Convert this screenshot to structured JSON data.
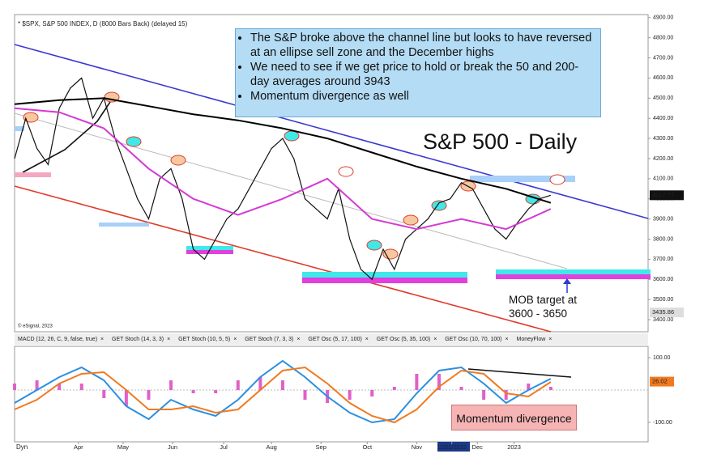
{
  "header": "* $SPX, S&P 500 INDEX, D (8000 Bars Back) (delayed 15)",
  "copyright": "© eSignal, 2023",
  "notes": [
    "The S&P broke above the channel line but looks to have reversed at an ellipse sell zone and the December highs",
    "We need to see if we get price to hold or break the 50 and 200-day averages around 3943",
    "Momentum divergence as well"
  ],
  "chart_title": "S&P 500 - Daily",
  "target_note": [
    "MOB target at",
    "3600 - 3650"
  ],
  "divergence_note": "Momentum divergence",
  "tabs": [
    "MACD (12, 26, C, 9, false, true)",
    "GET Stoch (14, 3, 3)",
    "GET Stoch (10, 5, 5)",
    "GET Stoch (7, 3, 3)",
    "GET Osc (5, 17, 100)",
    "GET Osc (5, 35, 100)",
    "GET Osc (10, 70, 100)",
    "MoneyFlow"
  ],
  "corner": "Dyn",
  "chart_data": [
    {
      "type": "line",
      "xlim": [
        0,
        397
      ],
      "xticks": [
        {
          "value": 40,
          "label": "Apr"
        },
        {
          "value": 68,
          "label": "May"
        },
        {
          "value": 99,
          "label": "Jun"
        },
        {
          "value": 131,
          "label": "Jul"
        },
        {
          "value": 161,
          "label": "Aug"
        },
        {
          "value": 192,
          "label": "Sep"
        },
        {
          "value": 221,
          "label": "Oct"
        },
        {
          "value": 252,
          "label": "Nov"
        },
        {
          "value": 274,
          "label": "11/21/2022"
        },
        {
          "value": 290,
          "label": "Dec"
        },
        {
          "value": 313,
          "label": "2023"
        }
      ],
      "ylim": [
        3340,
        4915
      ],
      "yticks": [
        {
          "value": 3400,
          "label": "3400.00"
        },
        {
          "value": 3500,
          "label": "3500.00"
        },
        {
          "value": 3600,
          "label": "3600.00"
        },
        {
          "value": 3700,
          "label": "3700.00"
        },
        {
          "value": 3800,
          "label": "3800.00"
        },
        {
          "value": 3900,
          "label": "3900.00"
        },
        {
          "value": 4000,
          "label": "4000.00"
        },
        {
          "value": 4100,
          "label": "4100.00"
        },
        {
          "value": 4200,
          "label": "4200.00"
        },
        {
          "value": 4300,
          "label": "4300.00"
        },
        {
          "value": 4400,
          "label": "4400.00"
        },
        {
          "value": 4500,
          "label": "4500.00"
        },
        {
          "value": 4600,
          "label": "4600.00"
        },
        {
          "value": 4700,
          "label": "4700.00"
        },
        {
          "value": 4800,
          "label": "4800.00"
        },
        {
          "value": 4900,
          "label": "4900.00"
        }
      ],
      "last_labels": [
        {
          "value": 4017.77,
          "color": "#111111"
        },
        {
          "value": 3435.86,
          "color": "#dddddd"
        }
      ],
      "series": [
        {
          "color": "#111111",
          "width": 1.2,
          "x": [
            0,
            7,
            14,
            21,
            28,
            35,
            42,
            49,
            56,
            63,
            70,
            77,
            84,
            91,
            98,
            105,
            112,
            119,
            126,
            133,
            140,
            147,
            154,
            161,
            168,
            175,
            182,
            189,
            196,
            203,
            210,
            217,
            224,
            231,
            238,
            245,
            252,
            259,
            266,
            273,
            280,
            287,
            294,
            301,
            308,
            315,
            322,
            329,
            336
          ],
          "values": [
            4200,
            4400,
            4250,
            4170,
            4450,
            4550,
            4600,
            4400,
            4500,
            4300,
            4150,
            4000,
            3900,
            4100,
            4150,
            4000,
            3750,
            3700,
            3800,
            3900,
            3950,
            4050,
            4150,
            4250,
            4300,
            4200,
            4000,
            3950,
            3900,
            4050,
            3800,
            3650,
            3600,
            3750,
            3650,
            3800,
            3850,
            3900,
            3980,
            4000,
            4080,
            4050,
            3950,
            3850,
            3800,
            3880,
            3950,
            4000,
            4018
          ]
        },
        {
          "color": "#000000",
          "width": 2,
          "x": [
            0,
            28,
            56,
            84,
            112,
            140,
            168,
            196,
            224,
            252,
            280,
            308,
            336
          ],
          "values": [
            4470,
            4490,
            4500,
            4460,
            4420,
            4390,
            4350,
            4300,
            4230,
            4160,
            4100,
            4050,
            3980
          ]
        },
        {
          "color": "#d43ad4",
          "width": 2,
          "x": [
            0,
            28,
            56,
            84,
            112,
            140,
            168,
            196,
            224,
            252,
            280,
            308,
            336
          ],
          "values": [
            4450,
            4430,
            4350,
            4150,
            4000,
            3920,
            4000,
            4100,
            3900,
            3850,
            3900,
            3850,
            3950
          ]
        }
      ]
    },
    {
      "type": "macd",
      "xlim": [
        0,
        397
      ],
      "ylim": [
        -160,
        135
      ],
      "yticks": [
        {
          "value": 100,
          "label": "100.00"
        },
        {
          "value": -100,
          "label": "-100.00"
        }
      ],
      "last_label": 26.02,
      "x": [
        0,
        14,
        28,
        42,
        56,
        70,
        84,
        98,
        112,
        126,
        140,
        154,
        168,
        182,
        196,
        210,
        224,
        238,
        252,
        266,
        280,
        294,
        308,
        322,
        336
      ],
      "histogram": {
        "color": "#e060c8",
        "values": [
          20,
          30,
          20,
          20,
          -25,
          -50,
          -30,
          30,
          -10,
          -10,
          30,
          40,
          30,
          -30,
          -40,
          -30,
          -20,
          10,
          50,
          50,
          10,
          -30,
          -30,
          20,
          10
        ]
      },
      "series": [
        {
          "color": "#2a8fe0",
          "values": [
            -40,
            0,
            40,
            70,
            30,
            -50,
            -90,
            -30,
            -60,
            -80,
            -30,
            40,
            90,
            40,
            -20,
            -70,
            -100,
            -90,
            -10,
            60,
            70,
            20,
            -40,
            0,
            35
          ]
        },
        {
          "color": "#f07a20",
          "values": [
            -60,
            -30,
            20,
            50,
            55,
            0,
            -60,
            -60,
            -50,
            -70,
            -60,
            0,
            60,
            70,
            20,
            -40,
            -80,
            -100,
            -60,
            10,
            60,
            50,
            -10,
            -20,
            25
          ]
        }
      ]
    }
  ]
}
